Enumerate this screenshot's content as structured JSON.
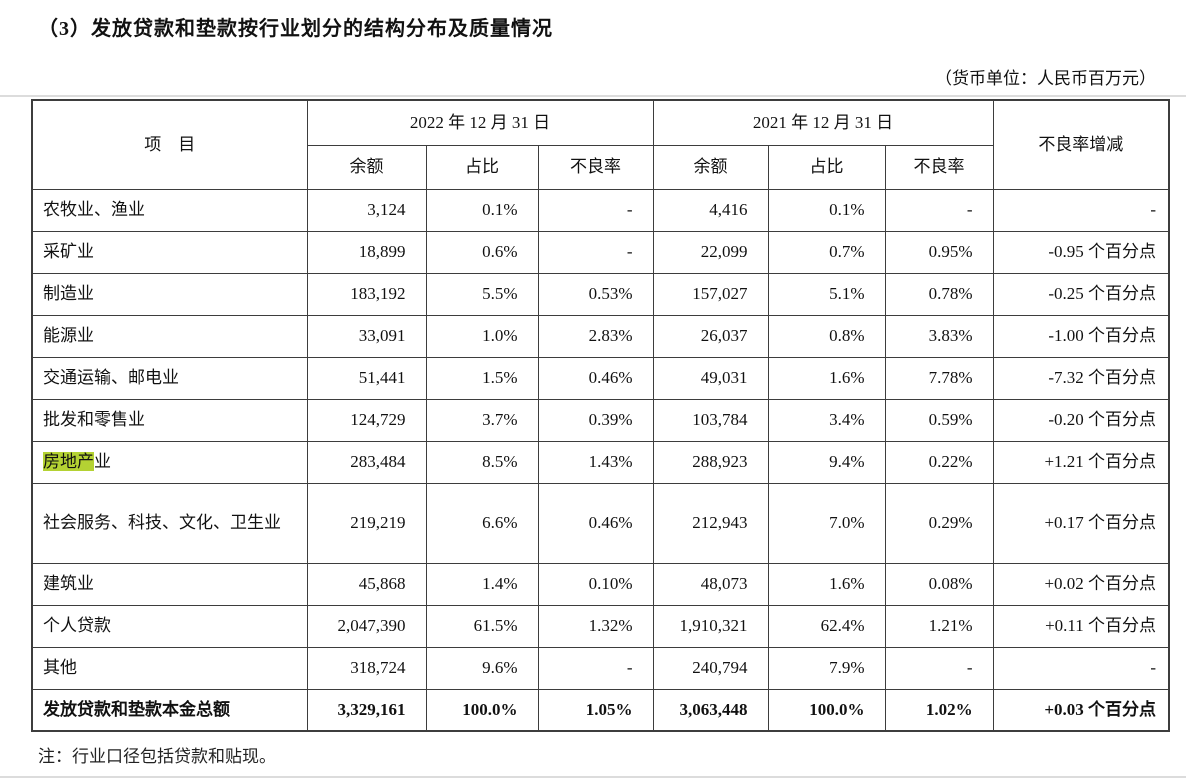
{
  "page": {
    "title": "（3）发放贷款和垫款按行业划分的结构分布及质量情况",
    "unit_note": "（货币单位：人民币百万元）",
    "footnote": "注：行业口径包括贷款和贴现。"
  },
  "table": {
    "item_header": "项　目",
    "col_groups": [
      {
        "label": "2022 年 12 月 31 日",
        "sub": [
          "余额",
          "占比",
          "不良率"
        ]
      },
      {
        "label": "2021 年 12 月 31 日",
        "sub": [
          "余额",
          "占比",
          "不良率"
        ]
      }
    ],
    "change_header": "不良率增减",
    "highlight_color": "#b4d233",
    "rows": [
      {
        "item": "农牧业、渔业",
        "v": [
          "3,124",
          "0.1%",
          "-",
          "4,416",
          "0.1%",
          "-",
          "-"
        ]
      },
      {
        "item": "采矿业",
        "v": [
          "18,899",
          "0.6%",
          "-",
          "22,099",
          "0.7%",
          "0.95%",
          "-0.95 个百分点"
        ]
      },
      {
        "item": "制造业",
        "v": [
          "183,192",
          "5.5%",
          "0.53%",
          "157,027",
          "5.1%",
          "0.78%",
          "-0.25 个百分点"
        ]
      },
      {
        "item": "能源业",
        "v": [
          "33,091",
          "1.0%",
          "2.83%",
          "26,037",
          "0.8%",
          "3.83%",
          "-1.00 个百分点"
        ]
      },
      {
        "item": "交通运输、邮电业",
        "v": [
          "51,441",
          "1.5%",
          "0.46%",
          "49,031",
          "1.6%",
          "7.78%",
          "-7.32 个百分点"
        ]
      },
      {
        "item": "批发和零售业",
        "v": [
          "124,729",
          "3.7%",
          "0.39%",
          "103,784",
          "3.4%",
          "0.59%",
          "-0.20 个百分点"
        ]
      },
      {
        "item": "房地产业",
        "item_parts": [
          {
            "text": "房地产",
            "hl": true
          },
          {
            "text": "业",
            "hl": false
          }
        ],
        "v": [
          "283,484",
          "8.5%",
          "1.43%",
          "288,923",
          "9.4%",
          "0.22%",
          "+1.21 个百分点"
        ]
      },
      {
        "item": "社会服务、科技、文化、卫生业",
        "tall": true,
        "v": [
          "219,219",
          "6.6%",
          "0.46%",
          "212,943",
          "7.0%",
          "0.29%",
          "+0.17 个百分点"
        ]
      },
      {
        "item": "建筑业",
        "v": [
          "45,868",
          "1.4%",
          "0.10%",
          "48,073",
          "1.6%",
          "0.08%",
          "+0.02 个百分点"
        ]
      },
      {
        "item": "个人贷款",
        "v": [
          "2,047,390",
          "61.5%",
          "1.32%",
          "1,910,321",
          "62.4%",
          "1.21%",
          "+0.11 个百分点"
        ]
      },
      {
        "item": "其他",
        "v": [
          "318,724",
          "9.6%",
          "-",
          "240,794",
          "7.9%",
          "-",
          "-"
        ]
      }
    ],
    "total": {
      "item": "发放贷款和垫款本金总额",
      "v": [
        "3,329,161",
        "100.0%",
        "1.05%",
        "3,063,448",
        "100.0%",
        "1.02%",
        "+0.03 个百分点"
      ]
    }
  }
}
